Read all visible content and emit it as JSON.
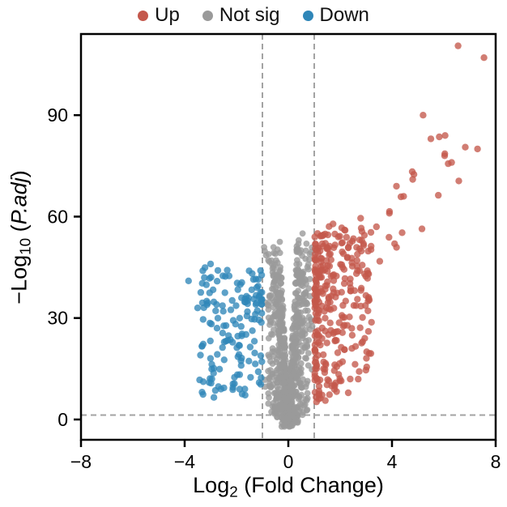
{
  "chart_data": {
    "type": "scatter",
    "title": "",
    "xlabel": "Log2 (Fold Change)",
    "ylabel": "-Log10 (P.adj)",
    "xlabel_parts": {
      "prefix": "Log",
      "sub": "2",
      "suffix": " (Fold Change)"
    },
    "ylabel_parts": {
      "prefix": "−Log",
      "sub": "10",
      "mid": " (",
      "italic": "P.adj",
      "suffix": ")"
    },
    "xlim": [
      -8,
      8
    ],
    "ylim": [
      -6,
      114
    ],
    "xticks": [
      -8,
      -4,
      0,
      4,
      8
    ],
    "yticks": [
      0,
      30,
      60,
      90
    ],
    "grid": false,
    "legend_position": "top",
    "legend": [
      {
        "label": "Up",
        "color": "#c4584c"
      },
      {
        "label": "Not sig",
        "color": "#9a9a9a"
      },
      {
        "label": "Down",
        "color": "#2f86b8"
      }
    ],
    "thresholds": {
      "vlines": [
        -1,
        1
      ],
      "hline": 1.3,
      "color": "#a3a3a3"
    },
    "seed": 42,
    "series": [
      {
        "name": "Not sig",
        "color": "#9a9a9a",
        "opacity": 0.8,
        "r": 3.9,
        "clusters": [
          {
            "kind": "v",
            "n": 850,
            "xmax": 1.12,
            "steep": 150,
            "base": 4,
            "cap": 53,
            "drop": 2.5
          }
        ],
        "points": [
          [
            0.55,
            55
          ],
          [
            0.4,
            53
          ],
          [
            -0.5,
            49
          ],
          [
            0.7,
            52
          ],
          [
            -0.65,
            47
          ]
        ]
      },
      {
        "name": "Down",
        "color": "#2f86b8",
        "opacity": 0.78,
        "r": 4.2,
        "clusters": [
          {
            "kind": "band",
            "n": 150,
            "dir": -1,
            "x0": 1.02,
            "xspan": 2.45,
            "xpow": 1.5,
            "ybase": 6,
            "yspan": 39,
            "ypow": 0.85,
            "corr": 0
          }
        ],
        "points": [
          [
            -3.85,
            41
          ],
          [
            -3.3,
            44
          ],
          [
            -3.0,
            46
          ],
          [
            -3.15,
            35
          ],
          [
            -2.75,
            27
          ],
          [
            -2.95,
            12
          ],
          [
            -2.6,
            9
          ],
          [
            -3.5,
            33
          ]
        ]
      },
      {
        "name": "Up",
        "color": "#c4584c",
        "opacity": 0.78,
        "r": 4.2,
        "clusters": [
          {
            "kind": "band",
            "n": 300,
            "dir": 1,
            "x0": 1.02,
            "xspan": 2.2,
            "xpow": 1.8,
            "ybase": 5,
            "yspan": 50,
            "ypow": 0.9,
            "corr": 5
          },
          {
            "kind": "trail",
            "n": 24,
            "x0": 2.3,
            "x1": 7.2,
            "slope": 12.5,
            "icept": 2,
            "noise": 30,
            "ymax": 112
          }
        ],
        "points": [
          [
            6.55,
            110.5
          ],
          [
            7.55,
            107
          ],
          [
            7.3,
            80
          ],
          [
            5.2,
            90
          ],
          [
            5.5,
            83
          ],
          [
            6.05,
            84
          ],
          [
            4.45,
            66
          ],
          [
            3.9,
            61
          ],
          [
            3.4,
            57
          ],
          [
            2.9,
            52
          ],
          [
            4.8,
            71
          ],
          [
            3.05,
            44
          ],
          [
            2.65,
            47
          ],
          [
            4.1,
            52
          ],
          [
            2.4,
            38
          ],
          [
            6.3,
            76
          ]
        ]
      }
    ]
  }
}
